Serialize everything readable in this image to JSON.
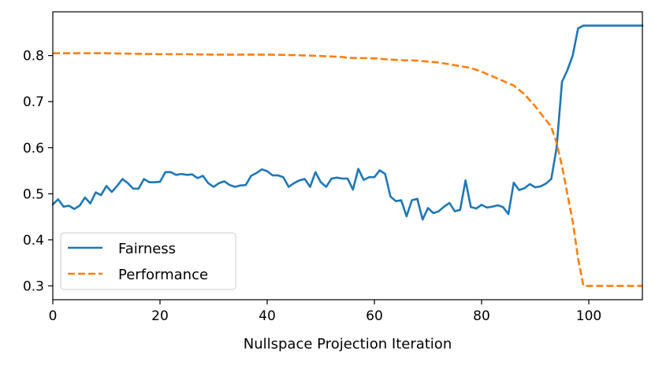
{
  "chart_data": {
    "type": "line",
    "xlabel": "Nullspace Projection Iteration",
    "ylabel": "",
    "xlim": [
      0,
      110
    ],
    "ylim": [
      0.27,
      0.895
    ],
    "xticks": [
      0,
      20,
      40,
      60,
      80,
      100
    ],
    "yticks": [
      0.3,
      0.4,
      0.5,
      0.6,
      0.7,
      0.8
    ],
    "grid": false,
    "legend_position": "lower-left",
    "series": [
      {
        "name": "Fairness",
        "color": "#1f77b4",
        "style": "solid",
        "x": [
          0,
          1,
          2,
          3,
          4,
          5,
          6,
          7,
          8,
          9,
          10,
          11,
          12,
          13,
          14,
          15,
          16,
          17,
          18,
          19,
          20,
          21,
          22,
          23,
          24,
          25,
          26,
          27,
          28,
          29,
          30,
          31,
          32,
          33,
          34,
          35,
          36,
          37,
          38,
          39,
          40,
          41,
          42,
          43,
          44,
          45,
          46,
          47,
          48,
          49,
          50,
          51,
          52,
          53,
          54,
          55,
          56,
          57,
          58,
          59,
          60,
          61,
          62,
          63,
          64,
          65,
          66,
          67,
          68,
          69,
          70,
          71,
          72,
          73,
          74,
          75,
          76,
          77,
          78,
          79,
          80,
          81,
          82,
          83,
          84,
          85,
          86,
          87,
          88,
          89,
          90,
          91,
          92,
          93,
          94,
          95,
          96,
          97,
          98,
          99,
          100,
          101,
          102,
          103,
          104,
          105,
          106,
          107,
          108,
          109,
          110
        ],
        "y": [
          0.477,
          0.488,
          0.472,
          0.474,
          0.467,
          0.474,
          0.492,
          0.479,
          0.503,
          0.497,
          0.517,
          0.504,
          0.517,
          0.532,
          0.523,
          0.511,
          0.511,
          0.532,
          0.525,
          0.525,
          0.526,
          0.547,
          0.547,
          0.541,
          0.543,
          0.541,
          0.542,
          0.534,
          0.539,
          0.523,
          0.515,
          0.523,
          0.527,
          0.519,
          0.515,
          0.518,
          0.519,
          0.539,
          0.545,
          0.553,
          0.549,
          0.54,
          0.54,
          0.536,
          0.515,
          0.523,
          0.529,
          0.532,
          0.515,
          0.547,
          0.525,
          0.515,
          0.533,
          0.535,
          0.533,
          0.533,
          0.509,
          0.554,
          0.53,
          0.536,
          0.536,
          0.551,
          0.543,
          0.494,
          0.484,
          0.486,
          0.451,
          0.486,
          0.489,
          0.444,
          0.469,
          0.458,
          0.462,
          0.472,
          0.48,
          0.462,
          0.465,
          0.529,
          0.471,
          0.468,
          0.476,
          0.47,
          0.472,
          0.475,
          0.471,
          0.456,
          0.524,
          0.508,
          0.512,
          0.521,
          0.514,
          0.516,
          0.522,
          0.532,
          0.6,
          0.743,
          0.768,
          0.8,
          0.859,
          0.865,
          0.865,
          0.865,
          0.865,
          0.865,
          0.865,
          0.865,
          0.865,
          0.865,
          0.865,
          0.865,
          0.865
        ]
      },
      {
        "name": "Performance",
        "color": "#ff7f0e",
        "style": "dashed",
        "x": [
          0,
          5,
          10,
          15,
          20,
          25,
          30,
          35,
          40,
          45,
          50,
          54,
          55,
          60,
          62,
          65,
          68,
          70,
          72,
          75,
          78,
          80,
          82,
          84,
          85,
          86,
          88,
          90,
          92,
          93,
          94,
          95,
          96,
          97,
          98,
          99,
          100,
          105,
          110
        ],
        "y": [
          0.805,
          0.805,
          0.805,
          0.804,
          0.803,
          0.803,
          0.802,
          0.802,
          0.802,
          0.801,
          0.799,
          0.797,
          0.795,
          0.794,
          0.792,
          0.79,
          0.789,
          0.787,
          0.785,
          0.779,
          0.773,
          0.765,
          0.755,
          0.745,
          0.74,
          0.735,
          0.716,
          0.69,
          0.66,
          0.645,
          0.61,
          0.56,
          0.5,
          0.44,
          0.36,
          0.3,
          0.3,
          0.3,
          0.3
        ]
      }
    ]
  }
}
